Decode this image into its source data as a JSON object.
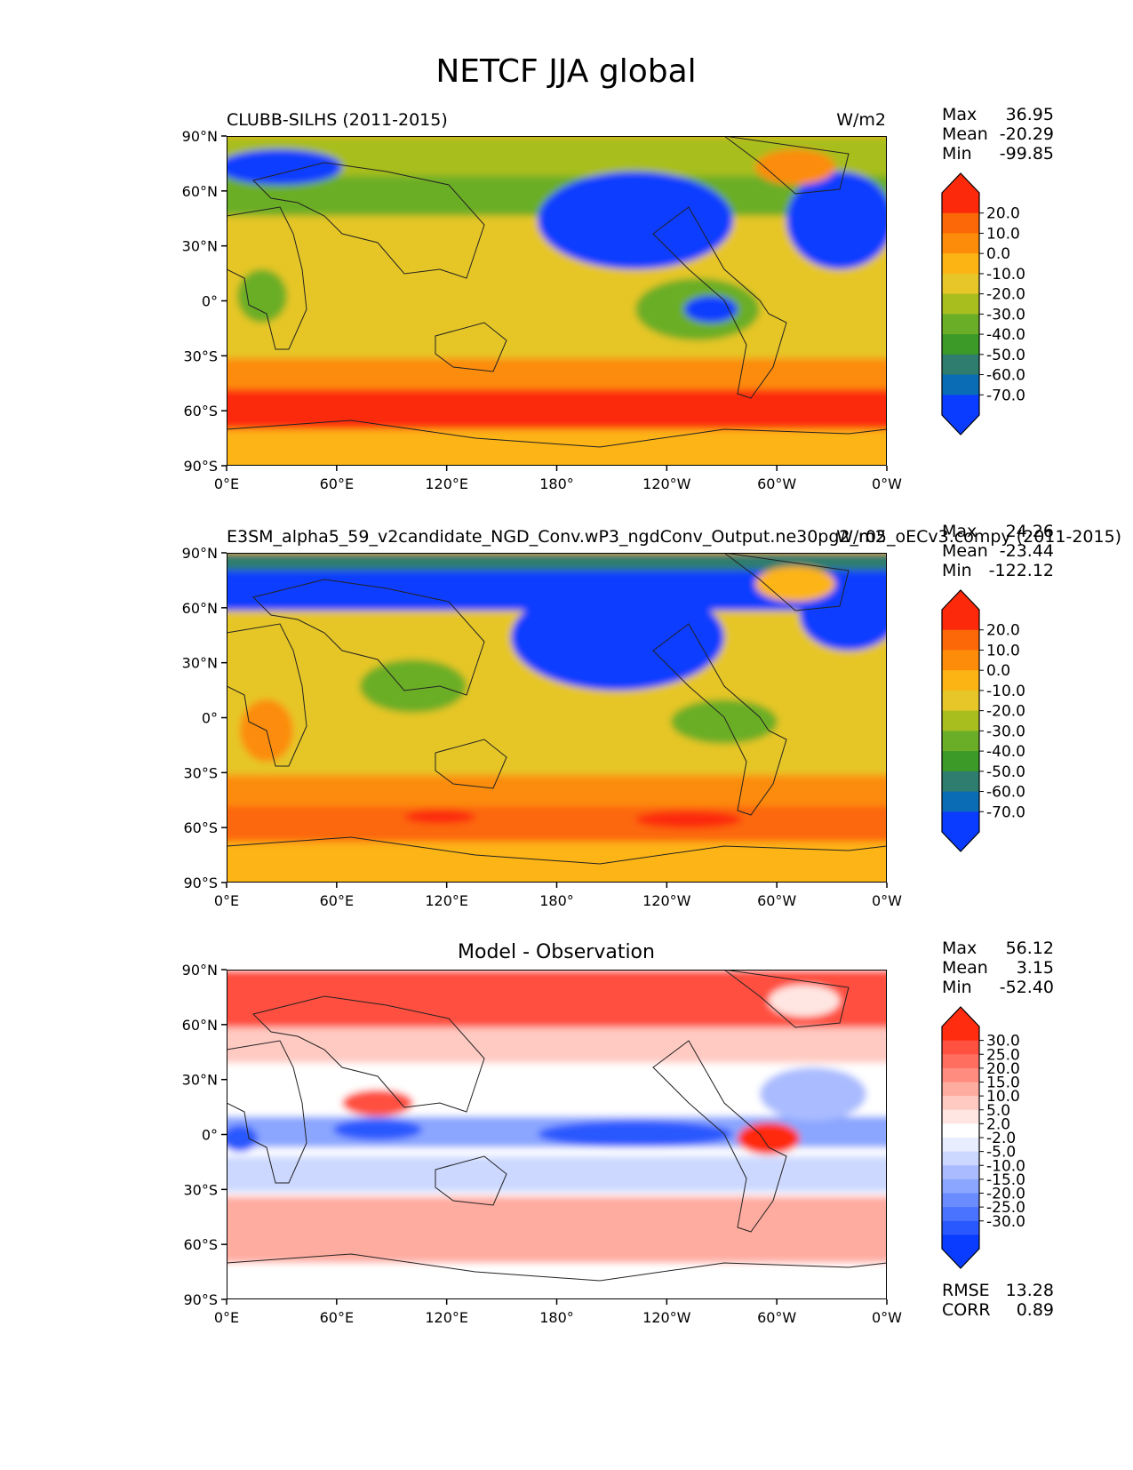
{
  "title": "NETCF JJA global",
  "colors": {
    "sequential": [
      "#0a3cff",
      "#0a6cb4",
      "#2e7d6e",
      "#3c9a28",
      "#6aae28",
      "#a8be1e",
      "#e6c628",
      "#fcb414",
      "#fc8c0a",
      "#fc6808",
      "#fc2a0a"
    ],
    "diverging": [
      "#0a3cff",
      "#2a58ff",
      "#4a74ff",
      "#6a8cff",
      "#8aa6ff",
      "#aabcff",
      "#ccd8ff",
      "#e8eeff",
      "#ffffff",
      "#ffe6e2",
      "#ffcac2",
      "#ffaca0",
      "#ff8c7e",
      "#ff6e5e",
      "#ff5040",
      "#ff2c10"
    ]
  },
  "chart_data": [
    {
      "type": "heatmap",
      "projection": "cylindrical global map",
      "title": "CLUBB-SILHS (2011-2015)",
      "units": "W/m2",
      "x_ticks": [
        "0°E",
        "60°E",
        "120°E",
        "180°",
        "120°W",
        "60°W",
        "0°W"
      ],
      "y_ticks": [
        "90°N",
        "60°N",
        "30°N",
        "0°",
        "30°S",
        "60°S",
        "90°S"
      ],
      "stats": {
        "max_label": "Max",
        "max": "36.95",
        "mean_label": "Mean",
        "mean": "-20.29",
        "min_label": "Min",
        "min": "-99.85"
      },
      "colorbar": {
        "ticks": [
          "20.0",
          "10.0",
          "0.0",
          "-10.0",
          "-20.0",
          "-30.0",
          "-40.0",
          "-50.0",
          "-60.0",
          "-70.0"
        ],
        "extend": "both",
        "palette": "sequential"
      }
    },
    {
      "type": "heatmap",
      "projection": "cylindrical global map",
      "title": "E3SM_alpha5_59_v2candidate_NGD_Conv.wP3_ngdConv_Output.ne30pg2_r05_oECv3.compy (2011-2015)",
      "units": "W/m2",
      "x_ticks": [
        "0°E",
        "60°E",
        "120°E",
        "180°",
        "120°W",
        "60°W",
        "0°W"
      ],
      "y_ticks": [
        "90°N",
        "60°N",
        "30°N",
        "0°",
        "30°S",
        "60°S",
        "90°S"
      ],
      "stats": {
        "max_label": "Max",
        "max": "24.26",
        "mean_label": "Mean",
        "mean": "-23.44",
        "min_label": "Min",
        "min": "-122.12"
      },
      "colorbar": {
        "ticks": [
          "20.0",
          "10.0",
          "0.0",
          "-10.0",
          "-20.0",
          "-30.0",
          "-40.0",
          "-50.0",
          "-60.0",
          "-70.0"
        ],
        "extend": "both",
        "palette": "sequential"
      }
    },
    {
      "type": "heatmap",
      "projection": "cylindrical global map",
      "title": "Model - Observation",
      "units": "",
      "x_ticks": [
        "0°E",
        "60°E",
        "120°E",
        "180°",
        "120°W",
        "60°W",
        "0°W"
      ],
      "y_ticks": [
        "90°N",
        "60°N",
        "30°N",
        "0°",
        "30°S",
        "60°S",
        "90°S"
      ],
      "stats": {
        "max_label": "Max",
        "max": "56.12",
        "mean_label": "Mean",
        "mean": "3.15",
        "min_label": "Min",
        "min": "-52.40"
      },
      "colorbar": {
        "ticks": [
          "30.0",
          "25.0",
          "20.0",
          "15.0",
          "10.0",
          "5.0",
          "2.0",
          "-2.0",
          "-5.0",
          "-10.0",
          "-15.0",
          "-20.0",
          "-25.0",
          "-30.0"
        ],
        "extend": "both",
        "palette": "diverging"
      },
      "metrics": {
        "rmse_label": "RMSE",
        "rmse": "13.28",
        "corr_label": "CORR",
        "corr": "0.89"
      }
    }
  ]
}
